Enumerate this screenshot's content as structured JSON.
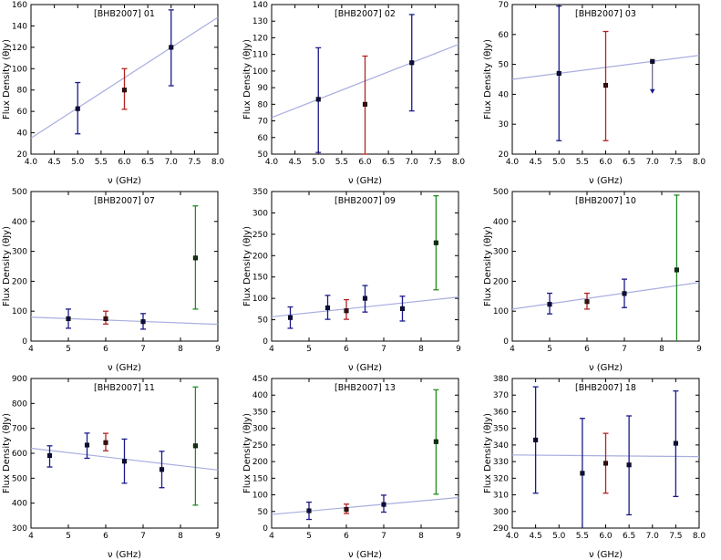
{
  "figure": {
    "colors": {
      "frame": "#000000",
      "fit_line": "#a9aee0",
      "blue_bar": "#1a1a8a",
      "blue_marker": "#0d0d3f",
      "red_bar": "#b22222",
      "red_marker": "#3c0f0f",
      "green_bar": "#228b22",
      "green_marker": "#103210",
      "limit_arrow": "#3d3d66"
    }
  },
  "chart_data": [
    {
      "type": "scatter",
      "title": "[BHB2007] 01",
      "xlabel": "ν (GHz)",
      "ylabel": "Flux Density (θJy)",
      "xlim": [
        4.0,
        8.0
      ],
      "ylim": [
        20,
        160
      ],
      "xticks": [
        4.0,
        4.5,
        5.0,
        5.5,
        6.0,
        6.5,
        7.0,
        7.5,
        8.0
      ],
      "xtick_labels": [
        "4.0",
        "4.5",
        "5.0",
        "5.5",
        "6.0",
        "6.5",
        "7.0",
        "7.5",
        "8.0"
      ],
      "yticks": [
        20,
        40,
        60,
        80,
        100,
        120,
        140,
        160
      ],
      "ytick_labels": [
        "20",
        "40",
        "60",
        "80",
        "100",
        "120",
        "140",
        "160"
      ],
      "points": [
        {
          "x": 5.0,
          "y": 62.5,
          "lo": 39,
          "hi": 87,
          "color": "blue"
        },
        {
          "x": 6.0,
          "y": 80,
          "lo": 62,
          "hi": 100,
          "color": "red"
        },
        {
          "x": 7.0,
          "y": 120,
          "lo": 84,
          "hi": 155,
          "color": "blue"
        }
      ],
      "fit_line": {
        "x1": 4.0,
        "y1": 35,
        "x2": 8.0,
        "y2": 148
      }
    },
    {
      "type": "scatter",
      "title": "[BHB2007] 02",
      "xlabel": "ν (GHz)",
      "ylabel": "Flux Density (θJy)",
      "xlim": [
        4.0,
        8.0
      ],
      "ylim": [
        50,
        140
      ],
      "xticks": [
        4.0,
        4.5,
        5.0,
        5.5,
        6.0,
        6.5,
        7.0,
        7.5,
        8.0
      ],
      "xtick_labels": [
        "4.0",
        "4.5",
        "5.0",
        "5.5",
        "6.0",
        "6.5",
        "7.0",
        "7.5",
        "8.0"
      ],
      "yticks": [
        50,
        60,
        70,
        80,
        90,
        100,
        110,
        120,
        130,
        140
      ],
      "ytick_labels": [
        "50",
        "60",
        "70",
        "80",
        "90",
        "100",
        "110",
        "120",
        "130",
        "140"
      ],
      "points": [
        {
          "x": 5.0,
          "y": 83,
          "lo": 51,
          "hi": 114,
          "color": "blue"
        },
        {
          "x": 6.0,
          "y": 80,
          "lo": 50,
          "hi": 109,
          "color": "red"
        },
        {
          "x": 7.0,
          "y": 105,
          "lo": 76,
          "hi": 134,
          "color": "blue"
        }
      ],
      "fit_line": {
        "x1": 4.0,
        "y1": 72,
        "x2": 8.0,
        "y2": 116
      }
    },
    {
      "type": "scatter",
      "title": "[BHB2007] 03",
      "xlabel": "ν (GHz)",
      "ylabel": "Flux Density (θJy)",
      "xlim": [
        4.0,
        8.0
      ],
      "ylim": [
        20,
        70
      ],
      "xticks": [
        4.0,
        4.5,
        5.0,
        5.5,
        6.0,
        6.5,
        7.0,
        7.5,
        8.0
      ],
      "xtick_labels": [
        "4.0",
        "4.5",
        "5.0",
        "5.5",
        "6.0",
        "6.5",
        "7.0",
        "7.5",
        "8.0"
      ],
      "yticks": [
        20,
        30,
        40,
        50,
        60,
        70
      ],
      "ytick_labels": [
        "20",
        "30",
        "40",
        "50",
        "60",
        "70"
      ],
      "points": [
        {
          "x": 5.0,
          "y": 47,
          "lo": 24.5,
          "hi": 69.5,
          "color": "blue"
        },
        {
          "x": 6.0,
          "y": 43,
          "lo": 24.5,
          "hi": 61,
          "color": "red"
        },
        {
          "x": 7.0,
          "y": 51,
          "lo": null,
          "hi": null,
          "color": "blue",
          "upper_limit_to": 40.5
        }
      ],
      "fit_line": {
        "x1": 4.0,
        "y1": 45,
        "x2": 8.0,
        "y2": 53
      }
    },
    {
      "type": "scatter",
      "title": "[BHB2007] 07",
      "xlabel": "ν (GHz)",
      "ylabel": "Flux Density (θJy)",
      "xlim": [
        4,
        9
      ],
      "ylim": [
        0,
        500
      ],
      "xticks": [
        4,
        5,
        6,
        7,
        8,
        9
      ],
      "xtick_labels": [
        "4",
        "5",
        "6",
        "7",
        "8",
        "9"
      ],
      "yticks": [
        0,
        100,
        200,
        300,
        400,
        500
      ],
      "ytick_labels": [
        "0",
        "100",
        "200",
        "300",
        "400",
        "500"
      ],
      "points": [
        {
          "x": 5.0,
          "y": 75,
          "lo": 43,
          "hi": 107,
          "color": "blue"
        },
        {
          "x": 6.0,
          "y": 75,
          "lo": 57,
          "hi": 100,
          "color": "red"
        },
        {
          "x": 7.0,
          "y": 65,
          "lo": 40,
          "hi": 92,
          "color": "blue"
        },
        {
          "x": 8.4,
          "y": 278,
          "lo": 107,
          "hi": 452,
          "color": "green"
        }
      ],
      "fit_line": {
        "x1": 4,
        "y1": 80,
        "x2": 9,
        "y2": 56
      }
    },
    {
      "type": "scatter",
      "title": "[BHB2007] 09",
      "xlabel": "ν (GHz)",
      "ylabel": "Flux Density (θJy)",
      "xlim": [
        4,
        9
      ],
      "ylim": [
        0,
        350
      ],
      "xticks": [
        4,
        5,
        6,
        7,
        8,
        9
      ],
      "xtick_labels": [
        "4",
        "5",
        "6",
        "7",
        "8",
        "9"
      ],
      "yticks": [
        0,
        50,
        100,
        150,
        200,
        250,
        300,
        350
      ],
      "ytick_labels": [
        "0",
        "50",
        "100",
        "150",
        "200",
        "250",
        "300",
        "350"
      ],
      "points": [
        {
          "x": 4.5,
          "y": 55,
          "lo": 30,
          "hi": 80,
          "color": "blue"
        },
        {
          "x": 5.5,
          "y": 78,
          "lo": 51,
          "hi": 107,
          "color": "blue"
        },
        {
          "x": 6.0,
          "y": 71,
          "lo": 51,
          "hi": 97,
          "color": "red"
        },
        {
          "x": 6.5,
          "y": 100,
          "lo": 68,
          "hi": 130,
          "color": "blue"
        },
        {
          "x": 7.5,
          "y": 76,
          "lo": 47,
          "hi": 105,
          "color": "blue"
        },
        {
          "x": 8.4,
          "y": 230,
          "lo": 120,
          "hi": 340,
          "color": "green"
        }
      ],
      "fit_line": {
        "x1": 4,
        "y1": 57,
        "x2": 9,
        "y2": 103
      }
    },
    {
      "type": "scatter",
      "title": "[BHB2007] 10",
      "xlabel": "ν (GHz)",
      "ylabel": "Flux Density (θJy)",
      "xlim": [
        4,
        9
      ],
      "ylim": [
        0,
        500
      ],
      "xticks": [
        4,
        5,
        6,
        7,
        8,
        9
      ],
      "xtick_labels": [
        "4",
        "5",
        "6",
        "7",
        "8",
        "9"
      ],
      "yticks": [
        0,
        100,
        200,
        300,
        400,
        500
      ],
      "ytick_labels": [
        "0",
        "100",
        "200",
        "300",
        "400",
        "500"
      ],
      "points": [
        {
          "x": 5.0,
          "y": 123,
          "lo": 91,
          "hi": 160,
          "color": "blue"
        },
        {
          "x": 6.0,
          "y": 132,
          "lo": 107,
          "hi": 160,
          "color": "red"
        },
        {
          "x": 7.0,
          "y": 159,
          "lo": 112,
          "hi": 207,
          "color": "blue"
        },
        {
          "x": 8.4,
          "y": 238,
          "lo": -20,
          "hi": 488,
          "color": "green"
        }
      ],
      "fit_line": {
        "x1": 4,
        "y1": 107,
        "x2": 9,
        "y2": 196
      }
    },
    {
      "type": "scatter",
      "title": "[BHB2007] 11",
      "xlabel": "ν (GHz)",
      "ylabel": "Flux Density (θJy)",
      "xlim": [
        4,
        9
      ],
      "ylim": [
        300,
        900
      ],
      "xticks": [
        4,
        5,
        6,
        7,
        8,
        9
      ],
      "xtick_labels": [
        "4",
        "5",
        "6",
        "7",
        "8",
        "9"
      ],
      "yticks": [
        300,
        400,
        500,
        600,
        700,
        800,
        900
      ],
      "ytick_labels": [
        "300",
        "400",
        "500",
        "600",
        "700",
        "800",
        "900"
      ],
      "points": [
        {
          "x": 4.5,
          "y": 591,
          "lo": 545,
          "hi": 630,
          "color": "blue"
        },
        {
          "x": 5.5,
          "y": 633,
          "lo": 580,
          "hi": 681,
          "color": "blue"
        },
        {
          "x": 6.0,
          "y": 643,
          "lo": 610,
          "hi": 680,
          "color": "red"
        },
        {
          "x": 6.5,
          "y": 568,
          "lo": 480,
          "hi": 657,
          "color": "blue"
        },
        {
          "x": 7.5,
          "y": 535,
          "lo": 462,
          "hi": 608,
          "color": "blue"
        },
        {
          "x": 8.4,
          "y": 630,
          "lo": 392,
          "hi": 866,
          "color": "green"
        }
      ],
      "fit_line": {
        "x1": 4,
        "y1": 620,
        "x2": 9,
        "y2": 533
      }
    },
    {
      "type": "scatter",
      "title": "[BHB2007] 13",
      "xlabel": "ν (GHz)",
      "ylabel": "Flux Density (θJy)",
      "xlim": [
        4,
        9
      ],
      "ylim": [
        0,
        450
      ],
      "xticks": [
        4,
        5,
        6,
        7,
        8,
        9
      ],
      "xtick_labels": [
        "4",
        "5",
        "6",
        "7",
        "8",
        "9"
      ],
      "yticks": [
        0,
        50,
        100,
        150,
        200,
        250,
        300,
        350,
        400,
        450
      ],
      "ytick_labels": [
        "0",
        "50",
        "100",
        "150",
        "200",
        "250",
        "300",
        "350",
        "400",
        "450"
      ],
      "points": [
        {
          "x": 5.0,
          "y": 52,
          "lo": 26,
          "hi": 78,
          "color": "blue"
        },
        {
          "x": 6.0,
          "y": 56,
          "lo": 44,
          "hi": 72,
          "color": "red"
        },
        {
          "x": 7.0,
          "y": 71,
          "lo": 48,
          "hi": 99,
          "color": "blue"
        },
        {
          "x": 8.4,
          "y": 260,
          "lo": 102,
          "hi": 416,
          "color": "green"
        }
      ],
      "fit_line": {
        "x1": 4,
        "y1": 41,
        "x2": 9,
        "y2": 92
      }
    },
    {
      "type": "scatter",
      "title": "[BHB2007] 18",
      "xlabel": "ν (GHz)",
      "ylabel": "Flux Density (θJy)",
      "xlim": [
        4.0,
        8.0
      ],
      "ylim": [
        290,
        380
      ],
      "xticks": [
        4.0,
        4.5,
        5.0,
        5.5,
        6.0,
        6.5,
        7.0,
        7.5,
        8.0
      ],
      "xtick_labels": [
        "4.0",
        "4.5",
        "5.0",
        "5.5",
        "6.0",
        "6.5",
        "7.0",
        "7.5",
        "8.0"
      ],
      "yticks": [
        290,
        300,
        310,
        320,
        330,
        340,
        350,
        360,
        370,
        380
      ],
      "ytick_labels": [
        "290",
        "300",
        "310",
        "320",
        "330",
        "340",
        "350",
        "360",
        "370",
        "380"
      ],
      "points": [
        {
          "x": 4.5,
          "y": 343,
          "lo": 311,
          "hi": 375,
          "color": "blue"
        },
        {
          "x": 5.5,
          "y": 323,
          "lo": 285,
          "hi": 356,
          "color": "blue"
        },
        {
          "x": 6.0,
          "y": 329,
          "lo": 311,
          "hi": 347,
          "color": "red"
        },
        {
          "x": 6.5,
          "y": 328,
          "lo": 298,
          "hi": 357.5,
          "color": "blue"
        },
        {
          "x": 7.5,
          "y": 341,
          "lo": 309,
          "hi": 372.5,
          "color": "blue"
        }
      ],
      "fit_line": {
        "x1": 4.0,
        "y1": 334,
        "x2": 8.0,
        "y2": 333
      }
    }
  ]
}
